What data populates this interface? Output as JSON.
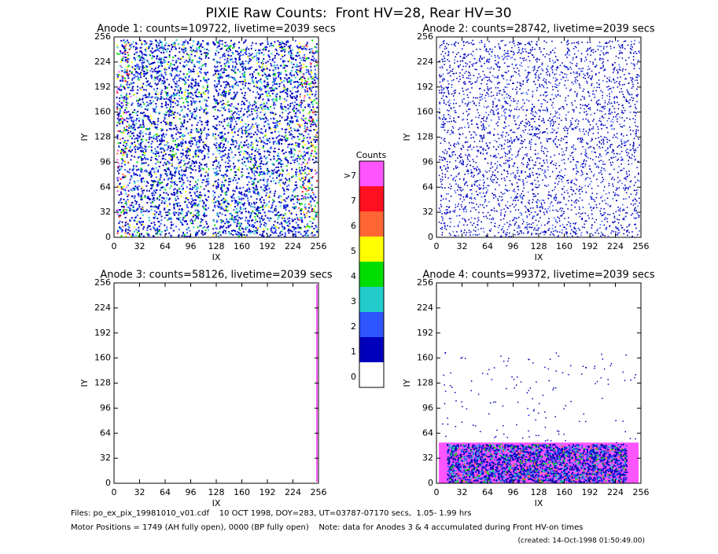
{
  "chart_data": [
    {
      "type": "heatmap",
      "title": "Anode 1: counts=109722, livetime=2039 secs",
      "xlabel": "IX",
      "ylabel": "IY",
      "xlim": [
        0,
        256
      ],
      "ylim": [
        0,
        256
      ],
      "xticks": [
        0,
        32,
        64,
        96,
        128,
        160,
        192,
        224,
        256
      ],
      "yticks": [
        0,
        32,
        64,
        96,
        128,
        160,
        192,
        224,
        256
      ]
    },
    {
      "type": "heatmap",
      "title": "Anode 2: counts=28742, livetime=2039 secs",
      "xlabel": "IX",
      "ylabel": "IY",
      "xlim": [
        0,
        256
      ],
      "ylim": [
        0,
        256
      ],
      "xticks": [
        0,
        32,
        64,
        96,
        128,
        160,
        192,
        224,
        256
      ],
      "yticks": [
        0,
        32,
        64,
        96,
        128,
        160,
        192,
        224,
        256
      ]
    },
    {
      "type": "heatmap",
      "title": "Anode 3: counts=58126, livetime=2039 secs",
      "xlabel": "IX",
      "ylabel": "IY",
      "xlim": [
        0,
        256
      ],
      "ylim": [
        0,
        256
      ],
      "xticks": [
        0,
        32,
        64,
        96,
        128,
        160,
        192,
        224,
        256
      ],
      "yticks": [
        0,
        32,
        64,
        96,
        128,
        160,
        192,
        224,
        256
      ]
    },
    {
      "type": "heatmap",
      "title": "Anode 4: counts=99372, livetime=2039 secs",
      "xlabel": "IX",
      "ylabel": "IY",
      "xlim": [
        0,
        256
      ],
      "ylim": [
        0,
        256
      ],
      "xticks": [
        0,
        32,
        64,
        96,
        128,
        160,
        192,
        224,
        256
      ],
      "yticks": [
        0,
        32,
        64,
        96,
        128,
        160,
        192,
        224,
        256
      ]
    }
  ],
  "header": {
    "title": "PIXIE Raw Counts:  Front HV=28, Rear HV=30"
  },
  "colorbar": {
    "title": "Counts",
    "levels": [
      {
        "label": ">7",
        "color": "#ff55ff"
      },
      {
        "label": "7",
        "color": "#ff1020"
      },
      {
        "label": "6",
        "color": "#ff6633"
      },
      {
        "label": "5",
        "color": "#ffff00"
      },
      {
        "label": "4",
        "color": "#00dd00"
      },
      {
        "label": "3",
        "color": "#22cccc"
      },
      {
        "label": "2",
        "color": "#2f55ff"
      },
      {
        "label": "1",
        "color": "#0000bb"
      },
      {
        "label": "0",
        "color": "#ffffff"
      }
    ]
  },
  "footer": {
    "files": "Files: po_ex_pix_19981010_v01.cdf    10 OCT 1998, DOY=283, UT=03787-07170 secs,  1.05- 1.99 hrs",
    "motor": "Motor Positions = 1749 (AH fully open), 0000 (BP fully open)    Note: data for Anodes 3 & 4 accumulated during Front HV-on times",
    "created": "(created: 14-Oct-1998 01:50:49.00)"
  }
}
